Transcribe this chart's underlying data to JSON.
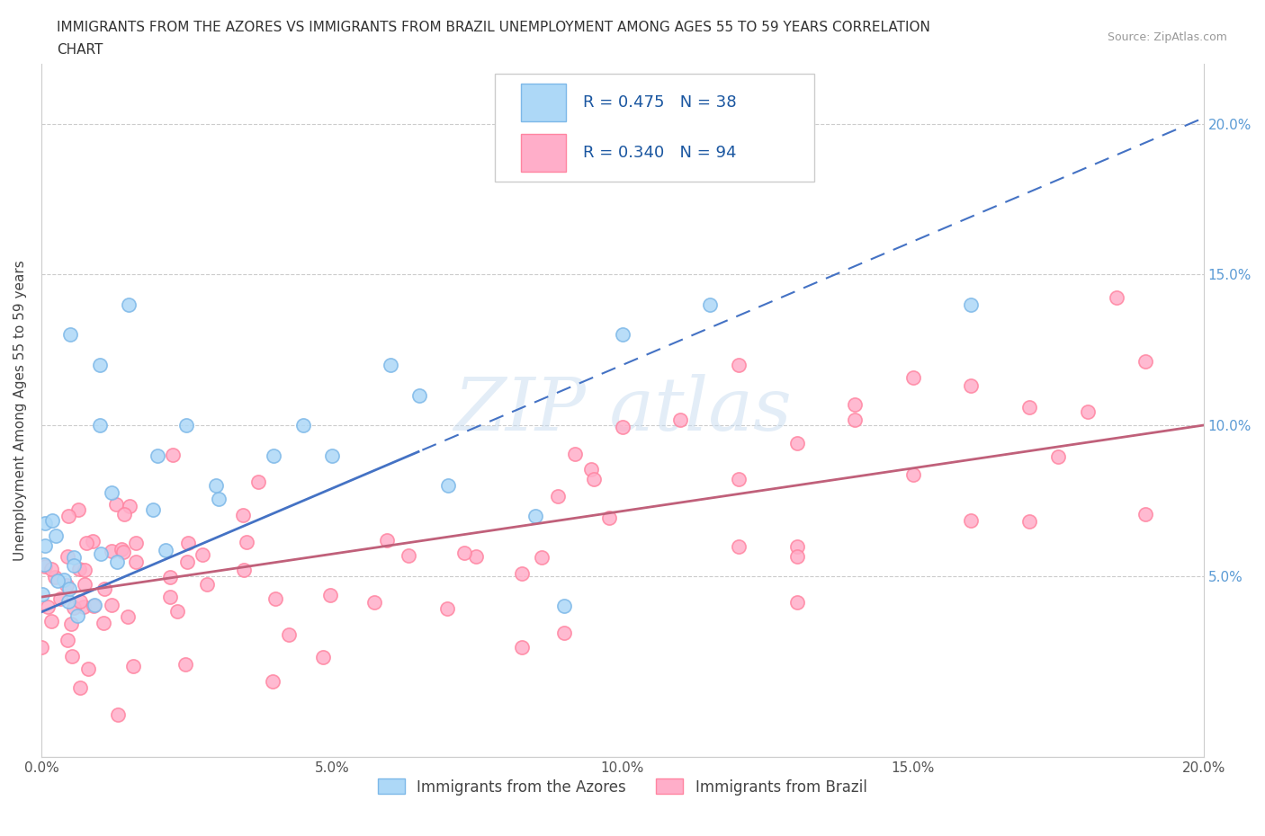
{
  "title_line1": "IMMIGRANTS FROM THE AZORES VS IMMIGRANTS FROM BRAZIL UNEMPLOYMENT AMONG AGES 55 TO 59 YEARS CORRELATION",
  "title_line2": "CHART",
  "source_text": "Source: ZipAtlas.com",
  "ylabel": "Unemployment Among Ages 55 to 59 years",
  "legend_label1": "Immigrants from the Azores",
  "legend_label2": "Immigrants from Brazil",
  "R1": 0.475,
  "N1": 38,
  "R2": 0.34,
  "N2": 94,
  "color_azores_fill": "#ADD8F7",
  "color_azores_edge": "#7DB8E8",
  "color_brazil_fill": "#FFAEC9",
  "color_brazil_edge": "#FF85A1",
  "color_line1": "#4472C4",
  "color_line2": "#C0607A",
  "xmin": 0.0,
  "xmax": 0.2,
  "ymin": -0.01,
  "ymax": 0.22,
  "line1_intercept": 0.038,
  "line1_slope": 0.82,
  "line1_solid_end": 0.065,
  "line2_intercept": 0.043,
  "line2_slope": 0.285,
  "watermark_text": "ZIPatlas",
  "xticks": [
    0.0,
    0.05,
    0.1,
    0.15,
    0.2
  ],
  "yticks": [
    0.05,
    0.1,
    0.15,
    0.2
  ],
  "title_fontsize": 11,
  "axis_tick_fontsize": 11,
  "ylabel_fontsize": 11,
  "legend_fontsize": 13
}
